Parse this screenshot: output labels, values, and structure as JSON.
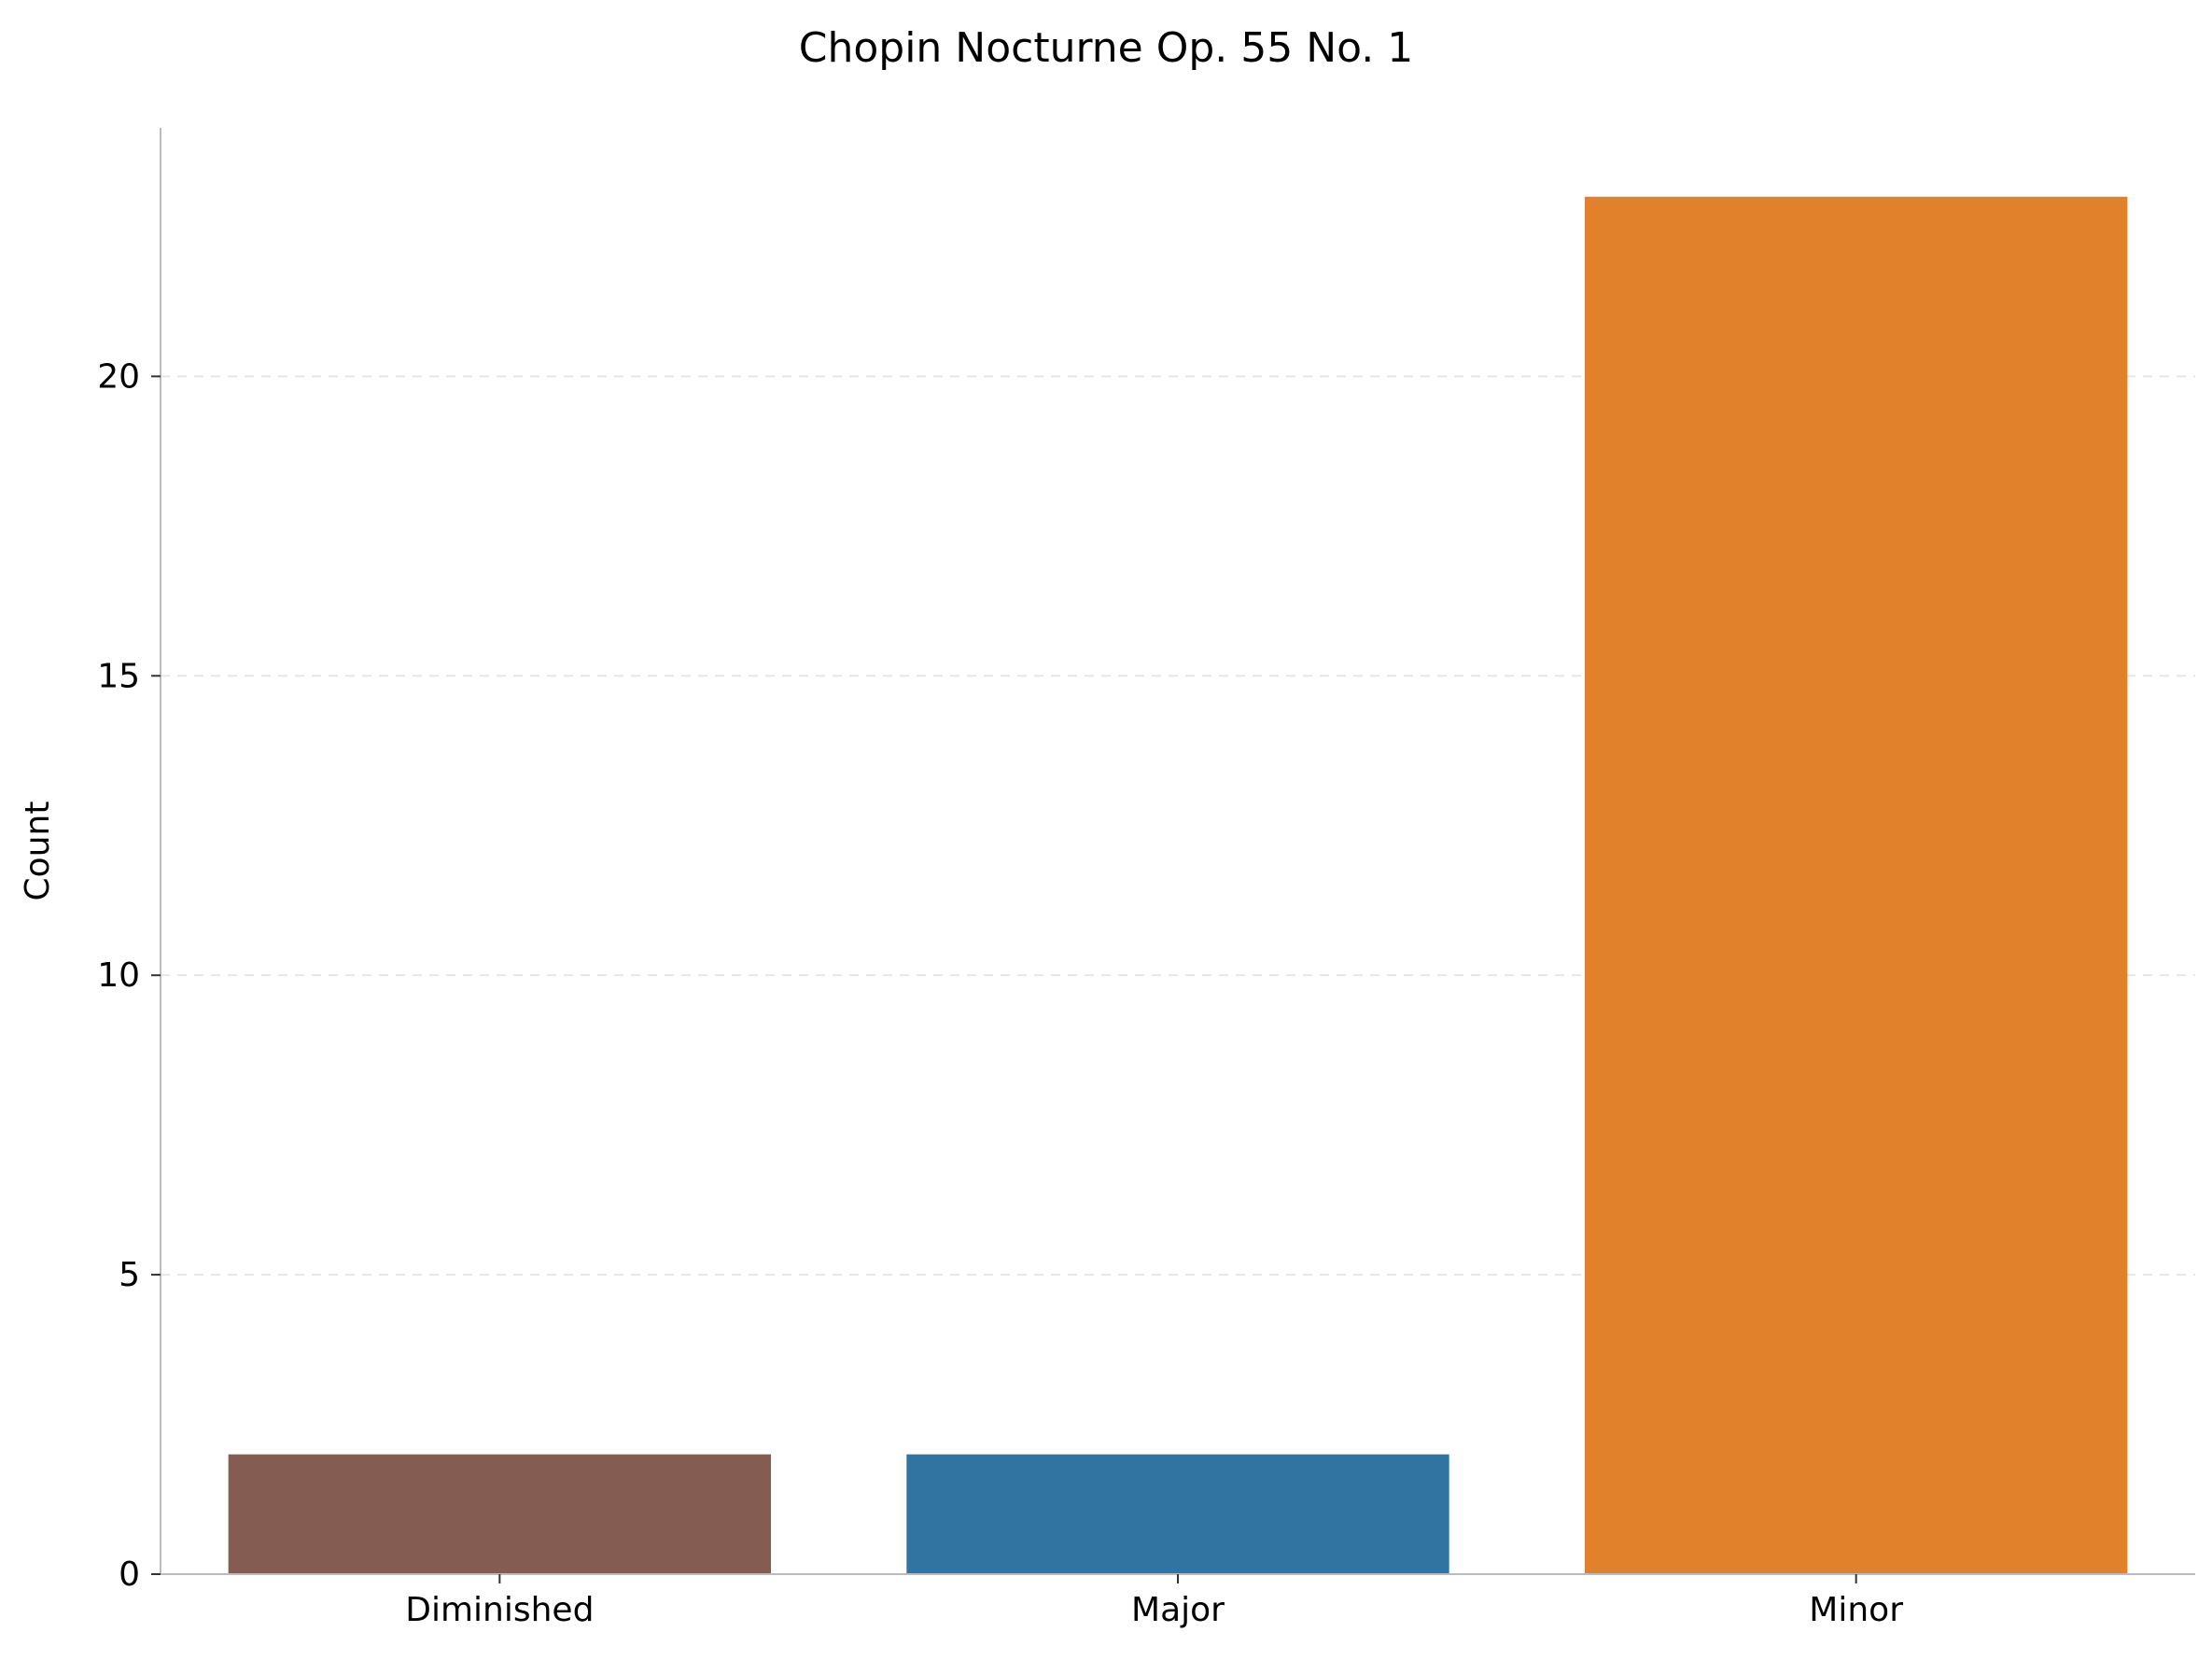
{
  "chart_data": {
    "type": "bar",
    "title": "Chopin Nocturne Op. 55 No. 1",
    "xlabel": "",
    "ylabel": "Count",
    "categories": [
      "Diminished",
      "Major",
      "Minor"
    ],
    "values": [
      2,
      2,
      23
    ],
    "colors": [
      "#845c52",
      "#3274a1",
      "#e1812c"
    ],
    "ylim": [
      0,
      24.15
    ],
    "yticks": [
      0,
      5,
      10,
      15,
      20
    ],
    "grid": "y-dashed",
    "legend": "none"
  }
}
